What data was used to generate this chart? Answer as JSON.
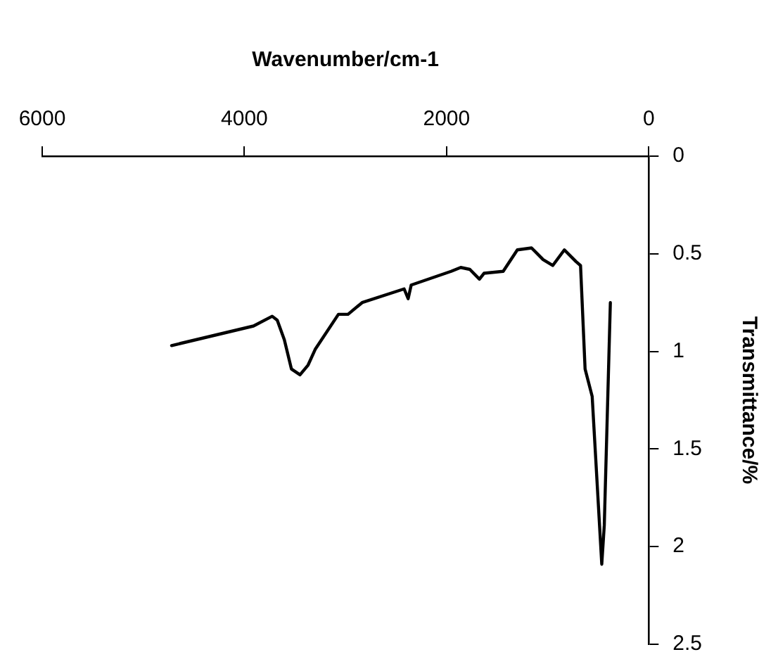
{
  "chart_data": {
    "type": "line",
    "xlabel": "Wavenumber/cm-1",
    "ylabel": "Transmittance/%",
    "xlim": [
      6000,
      0
    ],
    "xticks": [
      6000,
      4000,
      2000,
      0
    ],
    "ylim": [
      2.5,
      0
    ],
    "yticks": [
      0,
      0.5,
      1,
      1.5,
      2,
      2.5
    ],
    "grid": false,
    "legend": false,
    "marker": "none",
    "line_style": "solid",
    "x": [
      4720,
      3910,
      3725,
      3675,
      3605,
      3535,
      3450,
      3370,
      3300,
      3070,
      2975,
      2835,
      2420,
      2380,
      2350,
      1955,
      1860,
      1770,
      1675,
      1630,
      1440,
      1300,
      1160,
      1045,
      950,
      835,
      720,
      675,
      630,
      560,
      465,
      440,
      380
    ],
    "series": [
      {
        "color": "#000000",
        "values": [
          0.97,
          0.87,
          0.82,
          0.84,
          0.94,
          1.09,
          1.12,
          1.07,
          0.99,
          0.81,
          0.81,
          0.75,
          0.68,
          0.73,
          0.66,
          0.59,
          0.57,
          0.58,
          0.63,
          0.6,
          0.59,
          0.48,
          0.47,
          0.53,
          0.56,
          0.48,
          0.54,
          0.56,
          1.09,
          1.23,
          2.09,
          1.89,
          0.75
        ]
      }
    ]
  }
}
